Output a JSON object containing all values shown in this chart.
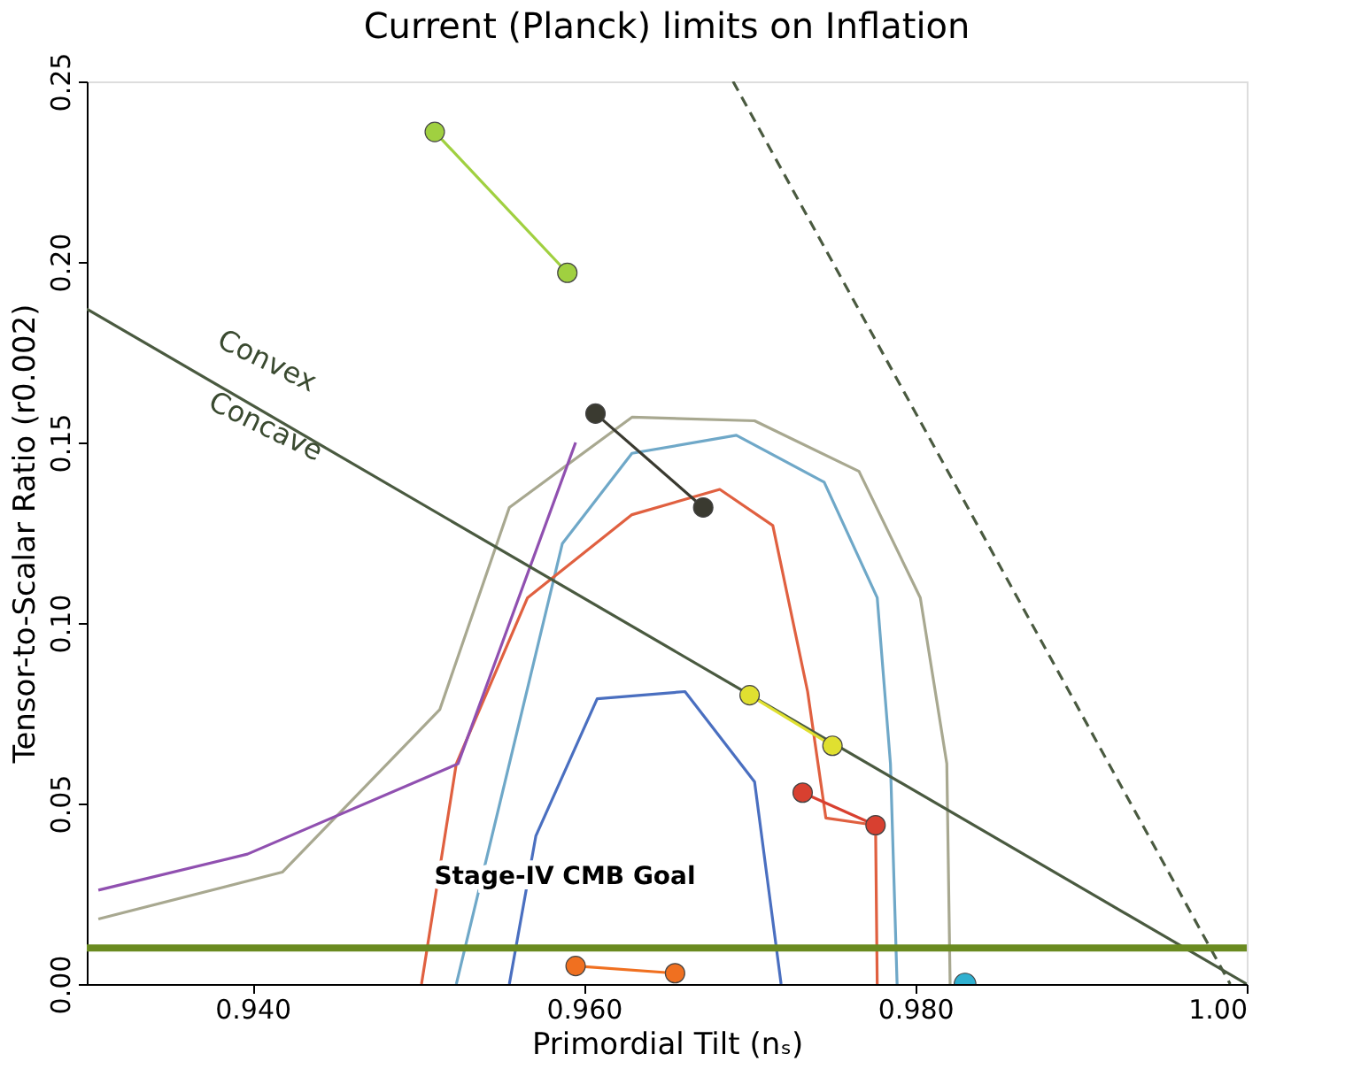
{
  "chart_data": {
    "type": "scatter",
    "title": "Current (Planck) limits on Inflation",
    "xlabel": "Primordial Tilt (nₛ)",
    "ylabel": "Tensor-to-Scalar Ratio (r0.002)",
    "xlim": [
      0.93,
      1.0
    ],
    "ylim": [
      0,
      0.25
    ],
    "xticks": [
      {
        "value": 0.94,
        "label": "0.940"
      },
      {
        "value": 0.96,
        "label": "0.960"
      },
      {
        "value": 0.98,
        "label": "0.980"
      },
      {
        "value": 1.0,
        "label": "1.00"
      }
    ],
    "yticks": [
      {
        "value": 0,
        "label": "0.00"
      },
      0.05,
      {
        "value": 0.1,
        "label": "0.10"
      },
      0.15,
      {
        "value": 0.2,
        "label": "0.20"
      },
      0.25
    ],
    "grid": false,
    "series": [
      {
        "type": "line",
        "color": "#a8a890",
        "x": [
          0.9307,
          0.9418,
          0.9513,
          0.9555,
          0.9629,
          0.9703,
          0.9766,
          0.9803,
          0.9819,
          0.9821
        ],
        "values": [
          0.018,
          0.031,
          0.076,
          0.132,
          0.157,
          0.156,
          0.142,
          0.107,
          0.061,
          0
        ]
      },
      {
        "type": "line",
        "color": "#6fa8c8",
        "x": [
          0.9523,
          0.9555,
          0.9587,
          0.9629,
          0.9692,
          0.9745,
          0.9777,
          0.9785,
          0.9789
        ],
        "values": [
          0,
          0.061,
          0.122,
          0.147,
          0.152,
          0.139,
          0.107,
          0.061,
          0
        ]
      },
      {
        "type": "line",
        "color": "#4a6fc0",
        "x": [
          0.9555,
          0.9571,
          0.9608,
          0.9661,
          0.9703,
          0.9719
        ],
        "values": [
          0,
          0.041,
          0.079,
          0.081,
          0.056,
          0
        ]
      },
      {
        "type": "line",
        "color": "#e06040",
        "x": [
          0.9502,
          0.9523,
          0.9566,
          0.9629,
          0.9682,
          0.9714,
          0.9735,
          0.9746,
          0.9776,
          0.9777
        ],
        "values": [
          0,
          0.061,
          0.107,
          0.13,
          0.137,
          0.127,
          0.081,
          0.046,
          0.044,
          0
        ]
      },
      {
        "type": "line",
        "color": "#9050b0",
        "x": [
          0.9307,
          0.9397,
          0.9524,
          0.9595
        ],
        "values": [
          0.026,
          0.036,
          0.061,
          0.15
        ]
      },
      {
        "type": "line",
        "color": "#4a5a40",
        "x": [
          0.93,
          1.0
        ],
        "values": [
          0.187,
          0.0
        ]
      },
      {
        "type": "line",
        "color": "#4a5a40",
        "line_style": "dashed",
        "x": [
          0.969,
          0.999
        ],
        "values": [
          0.25,
          0.0
        ]
      },
      {
        "type": "line",
        "marker": "circle",
        "color": "#a0d040",
        "x": [
          0.951,
          0.959
        ],
        "values": [
          0.236,
          0.197
        ]
      },
      {
        "type": "line",
        "marker": "circle",
        "color": "#3a3a30",
        "x": [
          0.9607,
          0.9672
        ],
        "values": [
          0.158,
          0.132
        ]
      },
      {
        "type": "line",
        "marker": "circle",
        "color": "#e0e030",
        "x": [
          0.97,
          0.975
        ],
        "values": [
          0.08,
          0.066
        ]
      },
      {
        "type": "line",
        "marker": "circle",
        "color": "#d84030",
        "x": [
          0.9732,
          0.9776
        ],
        "values": [
          0.053,
          0.044
        ]
      },
      {
        "type": "line",
        "marker": "circle",
        "color": "#f07020",
        "x": [
          0.9595,
          0.9655
        ],
        "values": [
          0.005,
          0.003
        ]
      },
      {
        "marker": "circle",
        "color": "#30b0d0",
        "x": [
          0.983
        ],
        "values": [
          0.0
        ]
      }
    ],
    "ref_lines": [
      {
        "axis": "y",
        "value": 0.01,
        "label": "Stage-IV CMB Goal",
        "color": "#6a8a20"
      }
    ],
    "annotations": [
      "Convex",
      "Concave"
    ]
  }
}
